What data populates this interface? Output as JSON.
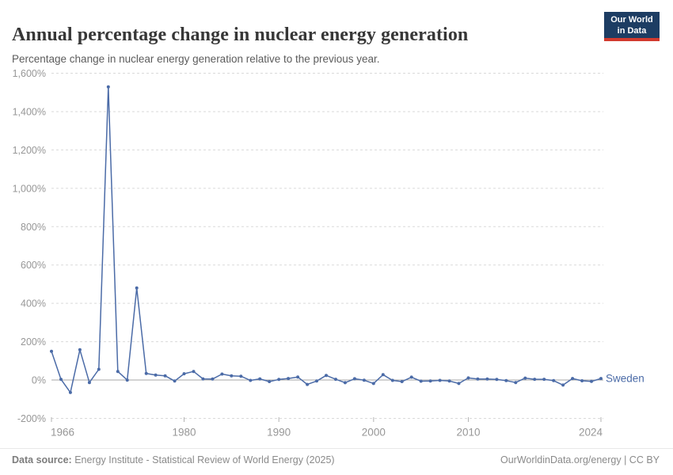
{
  "header": {
    "title": "Annual percentage change in nuclear energy generation",
    "subtitle": "Percentage change in nuclear energy generation relative to the previous year.",
    "logo": {
      "line1": "Our World",
      "line2": "in Data"
    }
  },
  "chart_data": {
    "type": "line",
    "title": "Annual percentage change in nuclear energy generation",
    "xlabel": "",
    "ylabel": "",
    "xlim": [
      1966,
      2024
    ],
    "ylim": [
      -200,
      1600
    ],
    "yticks": [
      -200,
      0,
      200,
      400,
      600,
      800,
      1000,
      1200,
      1400,
      1600
    ],
    "xticks": [
      1966,
      1980,
      1990,
      2000,
      2010,
      2024
    ],
    "grid": "horizontal-dashed",
    "zero_line": true,
    "legend_position": "end-of-line",
    "series": [
      {
        "name": "Sweden",
        "unit": "%",
        "x": [
          1966,
          1967,
          1968,
          1969,
          1970,
          1971,
          1972,
          1973,
          1974,
          1975,
          1976,
          1977,
          1978,
          1979,
          1980,
          1981,
          1982,
          1983,
          1984,
          1985,
          1986,
          1987,
          1988,
          1989,
          1990,
          1991,
          1992,
          1993,
          1994,
          1995,
          1996,
          1997,
          1998,
          1999,
          2000,
          2001,
          2002,
          2003,
          2004,
          2005,
          2006,
          2007,
          2008,
          2009,
          2010,
          2011,
          2012,
          2013,
          2014,
          2015,
          2016,
          2017,
          2018,
          2019,
          2020,
          2021,
          2022,
          2023,
          2024
        ],
        "values": [
          150,
          4,
          -65,
          158,
          -13,
          56,
          1529,
          45,
          0,
          480,
          34,
          26,
          22,
          -5,
          33,
          45,
          6,
          5,
          31,
          22,
          20,
          -2,
          6,
          -8,
          3,
          8,
          16,
          -23,
          -5,
          24,
          4,
          -14,
          7,
          -1,
          -18,
          28,
          -2,
          -8,
          15,
          -6,
          -5,
          -2,
          -5,
          -18,
          11,
          5,
          5,
          3,
          -3,
          -13,
          10,
          4,
          4,
          -3,
          -26,
          8,
          -4,
          -7,
          8
        ]
      }
    ]
  },
  "footer": {
    "source_label": "Data source: ",
    "source_text": "Energy Institute - Statistical Review of World Energy (2025)",
    "right_text": "OurWorldinData.org/energy | CC BY"
  },
  "colors": {
    "series_blue": "#4b6ba7",
    "grid": "#dadada",
    "zero_line": "#a6a6a6",
    "tick_mark": "#b3b3b3",
    "tick_text": "#979797",
    "logo_bg": "#1d3d63",
    "logo_accent": "#d23a2e"
  }
}
